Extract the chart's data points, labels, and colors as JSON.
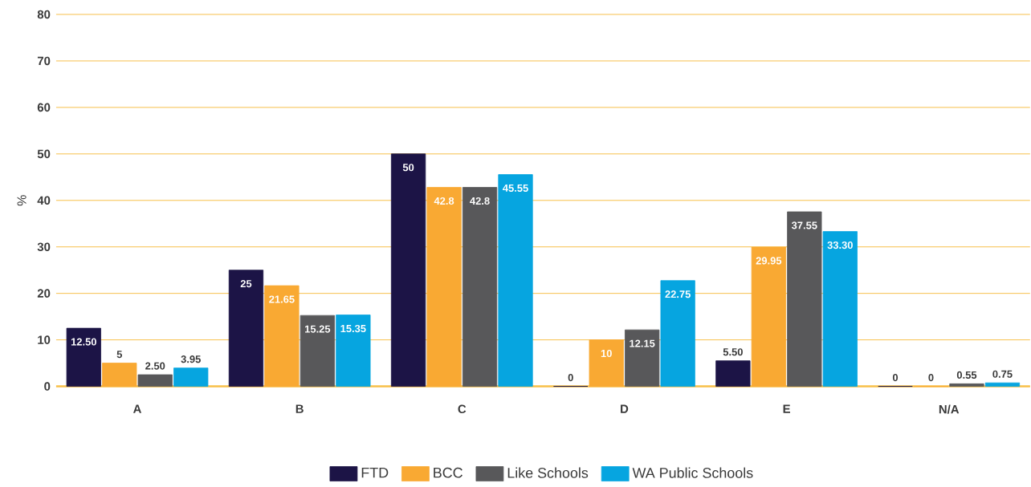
{
  "chart_data": {
    "type": "bar",
    "ylabel": "%",
    "categories": [
      "A",
      "B",
      "C",
      "D",
      "E",
      "N/A"
    ],
    "series": [
      {
        "name": "FTD",
        "color": "#1c1446",
        "values": [
          12.5,
          25,
          50,
          0,
          5.5,
          0
        ],
        "value_labels": [
          "12.50",
          "25",
          "50",
          "0",
          "5.50",
          "0"
        ]
      },
      {
        "name": "BCC",
        "color": "#f9a933",
        "values": [
          5,
          21.65,
          42.8,
          10,
          29.95,
          0
        ],
        "value_labels": [
          "5",
          "21.65",
          "42.8",
          "10",
          "29.95",
          "0"
        ]
      },
      {
        "name": "Like Schools",
        "color": "#58585a",
        "values": [
          2.5,
          15.25,
          42.8,
          12.15,
          37.55,
          0.55
        ],
        "value_labels": [
          "2.50",
          "15.25",
          "42.8",
          "12.15",
          "37.55",
          "0.55"
        ]
      },
      {
        "name": "WA Public Schools",
        "color": "#06a5e0",
        "values": [
          3.95,
          15.35,
          45.55,
          22.75,
          33.3,
          0.75
        ],
        "value_labels": [
          "3.95",
          "15.35",
          "45.55",
          "22.75",
          "33.30",
          "0.75"
        ]
      }
    ],
    "ylim": [
      0,
      80
    ],
    "yticks": [
      0,
      10,
      20,
      30,
      40,
      50,
      60,
      70,
      80
    ],
    "grid": "y",
    "legend": "bottom"
  }
}
